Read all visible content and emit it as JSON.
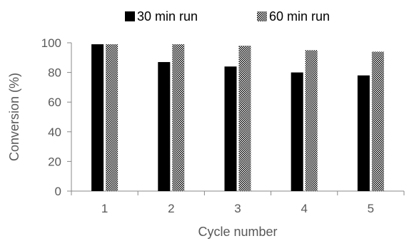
{
  "chart_data": {
    "type": "bar",
    "categories": [
      "1",
      "2",
      "3",
      "4",
      "5"
    ],
    "series": [
      {
        "name": "30 min run",
        "values": [
          99,
          87,
          84,
          80,
          78
        ],
        "color": "#000000",
        "pattern": "solid"
      },
      {
        "name": "60 min run",
        "values": [
          99,
          99,
          98,
          95,
          94
        ],
        "color": "#000000",
        "pattern": "checkered"
      }
    ],
    "xlabel": "Cycle number",
    "ylabel": "Conversion (%)",
    "ylim": [
      0,
      100
    ],
    "yticks": [
      "0",
      "20",
      "40",
      "60",
      "80",
      "100"
    ],
    "grid": false,
    "legend_position": "top"
  }
}
